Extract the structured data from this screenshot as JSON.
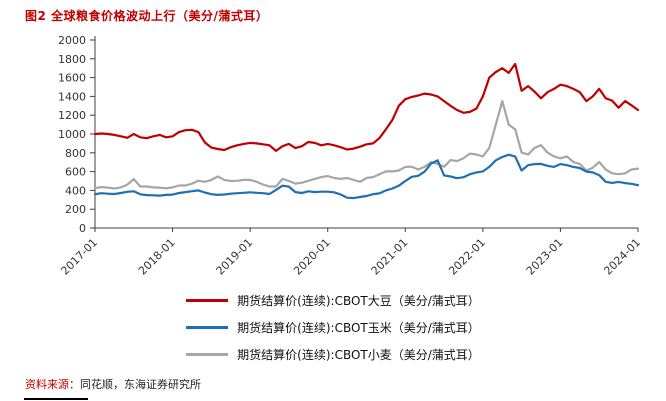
{
  "page": {
    "title": "图2  全球粮食价格波动上行（美分/蒲式耳）",
    "source_label": "资料来源：",
    "source_text": "同花顺，东海证券研究所"
  },
  "chart_data": {
    "type": "line",
    "title": "图2 全球粮食价格波动上行（美分/蒲式耳）",
    "xlabel": "",
    "ylabel": "",
    "ylim": [
      0,
      2000
    ],
    "y_ticks": [
      0,
      200,
      400,
      600,
      800,
      1000,
      1200,
      1400,
      1600,
      1800,
      2000
    ],
    "x_tick_labels": [
      "2017-01",
      "2018-01",
      "2019-01",
      "2020-01",
      "2021-01",
      "2022-01",
      "2023-01",
      "2024-01"
    ],
    "x_frequency": "monthly",
    "grid": false,
    "legend_position": "bottom",
    "axis_color": "#404040",
    "series": [
      {
        "name": "期货结算价(连续):CBOT大豆（美分/蒲式耳）",
        "color": "#c00000",
        "values": [
          1000,
          1005,
          1000,
          990,
          975,
          960,
          1000,
          965,
          955,
          975,
          990,
          965,
          975,
          1020,
          1040,
          1045,
          1020,
          910,
          855,
          840,
          830,
          860,
          880,
          895,
          905,
          900,
          890,
          880,
          820,
          870,
          895,
          850,
          870,
          915,
          905,
          880,
          895,
          880,
          860,
          835,
          845,
          865,
          890,
          900,
          955,
          1050,
          1150,
          1300,
          1370,
          1395,
          1410,
          1430,
          1420,
          1400,
          1350,
          1300,
          1255,
          1225,
          1235,
          1270,
          1400,
          1600,
          1660,
          1700,
          1650,
          1745,
          1460,
          1510,
          1450,
          1380,
          1445,
          1480,
          1525,
          1510,
          1480,
          1445,
          1350,
          1400,
          1480,
          1380,
          1355,
          1280,
          1350,
          1305,
          1255
        ]
      },
      {
        "name": "期货结算价(连续):CBOT玉米（美分/蒲式耳）",
        "color": "#1f6fb5",
        "values": [
          360,
          370,
          365,
          362,
          372,
          385,
          390,
          358,
          350,
          348,
          345,
          352,
          355,
          372,
          382,
          392,
          400,
          378,
          360,
          352,
          356,
          365,
          370,
          375,
          380,
          375,
          370,
          362,
          405,
          450,
          440,
          382,
          372,
          390,
          382,
          386,
          386,
          380,
          356,
          322,
          318,
          330,
          340,
          360,
          368,
          400,
          420,
          450,
          500,
          545,
          555,
          600,
          685,
          720,
          560,
          548,
          530,
          540,
          572,
          592,
          602,
          650,
          720,
          755,
          780,
          760,
          612,
          668,
          680,
          682,
          662,
          650,
          680,
          668,
          650,
          638,
          600,
          592,
          562,
          492,
          480,
          490,
          478,
          470,
          455
        ]
      },
      {
        "name": "期货结算价(连续):CBOT小麦（美分/蒲式耳）",
        "color": "#a6a6a6",
        "values": [
          425,
          435,
          430,
          420,
          432,
          462,
          520,
          442,
          442,
          432,
          430,
          422,
          432,
          452,
          452,
          472,
          502,
          492,
          512,
          548,
          512,
          500,
          502,
          512,
          512,
          492,
          462,
          442,
          442,
          522,
          500,
          472,
          482,
          502,
          522,
          542,
          552,
          532,
          522,
          532,
          512,
          492,
          532,
          542,
          572,
          602,
          602,
          612,
          650,
          652,
          622,
          652,
          702,
          682,
          652,
          722,
          712,
          742,
          792,
          782,
          762,
          852,
          1100,
          1350,
          1100,
          1050,
          802,
          782,
          852,
          882,
          802,
          762,
          742,
          762,
          702,
          682,
          612,
          642,
          702,
          622,
          582,
          572,
          582,
          622,
          632
        ]
      }
    ]
  }
}
